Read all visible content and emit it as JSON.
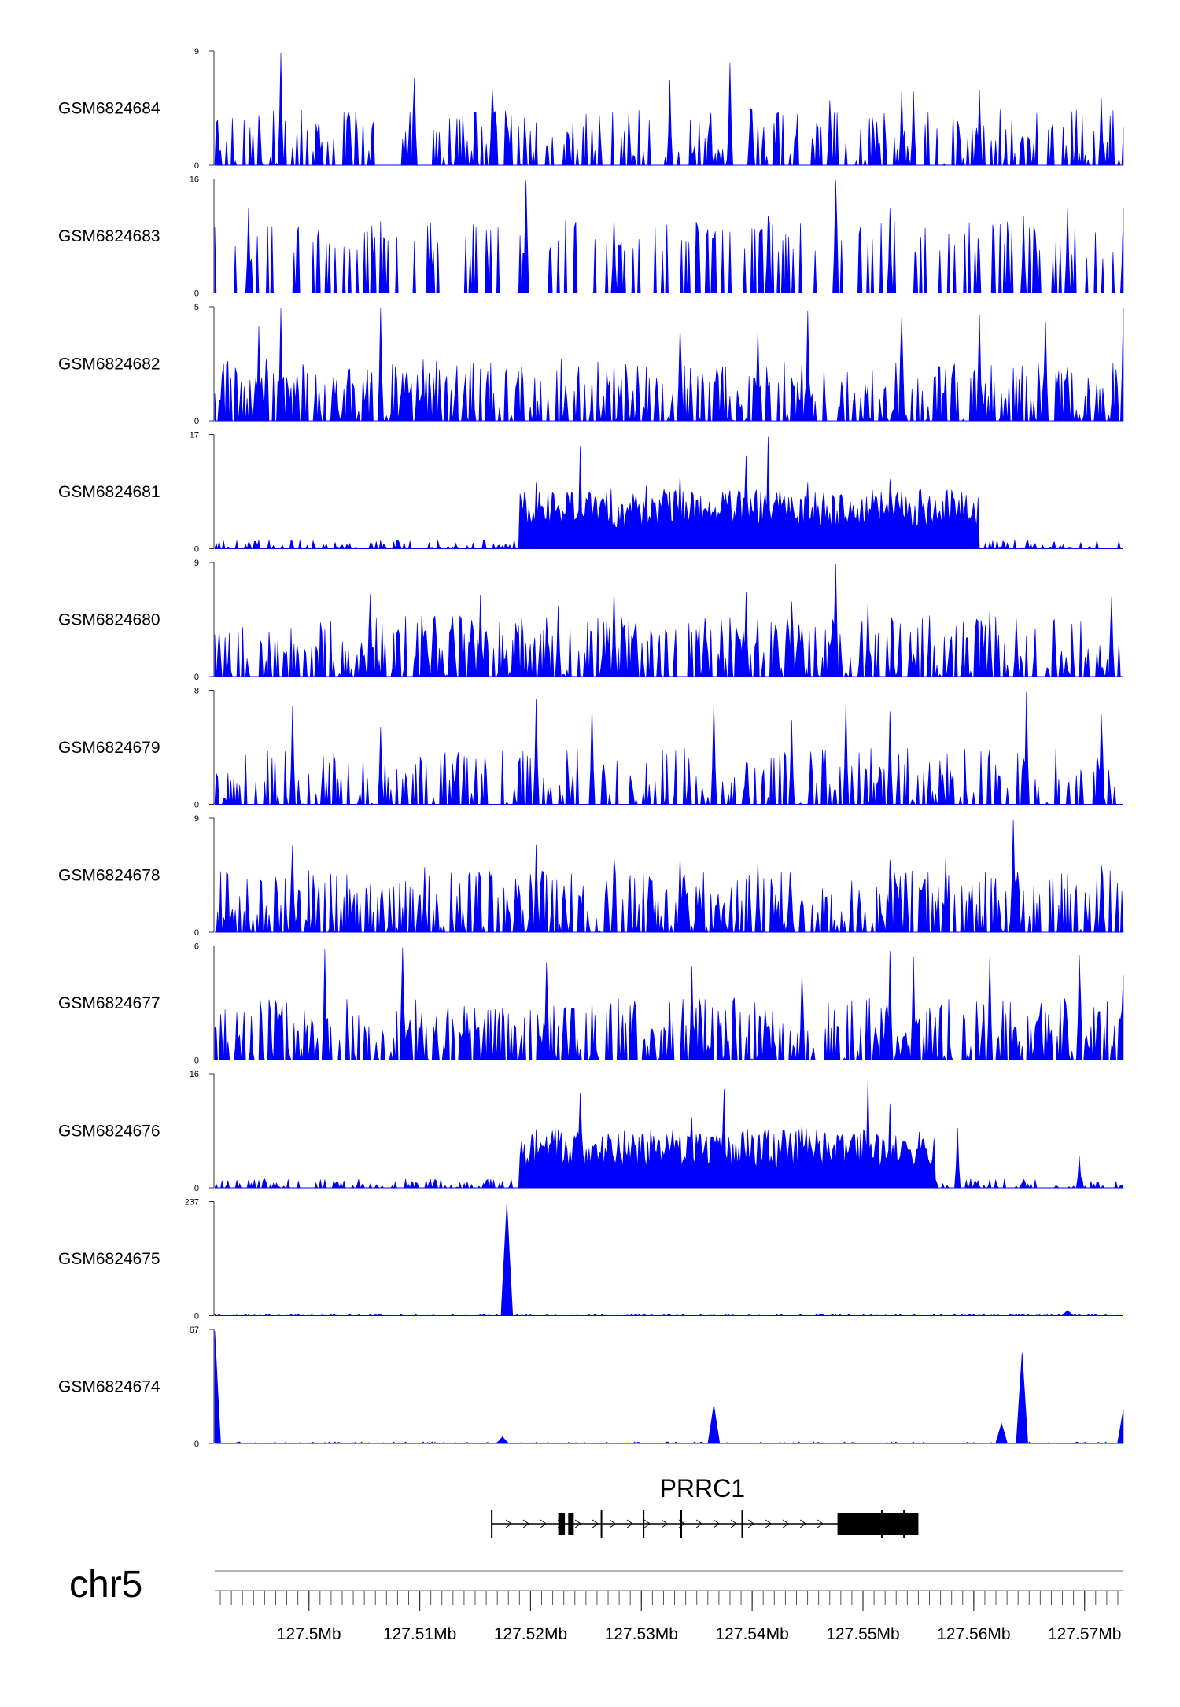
{
  "chart_data": {
    "type": "area",
    "region": {
      "chrom": "chr5",
      "start_mb": 127.4915,
      "end_mb": 127.5735
    },
    "fill_color": "#0000ff",
    "tracks": [
      {
        "name": "GSM6824684",
        "ymax": 9,
        "ymin": 0,
        "peaks": [
          [
            127.4975,
            9
          ],
          [
            127.538,
            8.2
          ],
          [
            127.5095,
            7
          ],
          [
            127.5325,
            6.8
          ],
          [
            127.5165,
            6.2
          ],
          [
            127.5605,
            6
          ],
          [
            127.5545,
            5.9
          ],
          [
            127.5535,
            5.9
          ],
          [
            127.5715,
            5.4
          ],
          [
            127.547,
            5.2
          ]
        ],
        "profile": "sparse"
      },
      {
        "name": "GSM6824683",
        "ymax": 16,
        "ymin": 0,
        "peaks": [
          [
            127.5196,
            16
          ],
          [
            127.5475,
            16
          ],
          [
            127.4945,
            12
          ],
          [
            127.5525,
            12
          ],
          [
            127.5685,
            12
          ],
          [
            127.5275,
            11
          ],
          [
            127.5415,
            11
          ],
          [
            127.5645,
            11
          ],
          [
            127.5735,
            12
          ],
          [
            127.511,
            10
          ]
        ],
        "profile": "sparse-gaps"
      },
      {
        "name": "GSM6824682",
        "ymax": 5,
        "ymin": 0,
        "peaks": [
          [
            127.4975,
            5
          ],
          [
            127.5065,
            5
          ],
          [
            127.5735,
            5
          ],
          [
            127.545,
            4.9
          ],
          [
            127.5605,
            4.7
          ],
          [
            127.5535,
            4.6
          ],
          [
            127.5665,
            4.4
          ],
          [
            127.4955,
            4.2
          ],
          [
            127.5335,
            4.2
          ],
          [
            127.5405,
            4.1
          ]
        ],
        "profile": "dense"
      },
      {
        "name": "GSM6824681",
        "ymax": 17,
        "ymin": 0,
        "peaks": [
          [
            127.5414,
            17
          ],
          [
            127.5245,
            15.5
          ],
          [
            127.5395,
            14
          ],
          [
            127.5525,
            10.5
          ],
          [
            127.545,
            10
          ],
          [
            127.5335,
            11.5
          ],
          [
            127.5205,
            10
          ],
          [
            127.5305,
            9.5
          ]
        ],
        "profile": "broad-domain",
        "domain_mb": [
          127.519,
          127.5605
        ]
      },
      {
        "name": "GSM6824680",
        "ymax": 9,
        "ymin": 0,
        "peaks": [
          [
            127.5475,
            9
          ],
          [
            127.5275,
            7
          ],
          [
            127.5395,
            6.8
          ],
          [
            127.5055,
            6.6
          ],
          [
            127.5155,
            6.5
          ],
          [
            127.5725,
            6.4
          ],
          [
            127.5435,
            6
          ],
          [
            127.5505,
            5.9
          ],
          [
            127.5225,
            5.6
          ],
          [
            127.5615,
            5.2
          ]
        ],
        "profile": "dense"
      },
      {
        "name": "GSM6824679",
        "ymax": 8,
        "ymin": 0,
        "peaks": [
          [
            127.5648,
            8
          ],
          [
            127.5205,
            7.5
          ],
          [
            127.5365,
            7.3
          ],
          [
            127.5485,
            7.2
          ],
          [
            127.4985,
            7
          ],
          [
            127.5255,
            7
          ],
          [
            127.5715,
            6.4
          ],
          [
            127.5525,
            6.6
          ],
          [
            127.5435,
            6
          ],
          [
            127.5065,
            5.5
          ]
        ],
        "profile": "sparse"
      },
      {
        "name": "GSM6824678",
        "ymax": 9,
        "ymin": 0,
        "peaks": [
          [
            127.5635,
            9
          ],
          [
            127.5205,
            7
          ],
          [
            127.4985,
            7
          ],
          [
            127.5275,
            6
          ],
          [
            127.5405,
            5.7
          ],
          [
            127.5525,
            5.8
          ],
          [
            127.5575,
            6
          ],
          [
            127.5105,
            5.2
          ],
          [
            127.5715,
            5.4
          ],
          [
            127.5335,
            6.2
          ]
        ],
        "profile": "dense"
      },
      {
        "name": "GSM6824677",
        "ymax": 6,
        "ymin": 0,
        "peaks": [
          [
            127.5085,
            6
          ],
          [
            127.5015,
            5.9
          ],
          [
            127.5525,
            5.8
          ],
          [
            127.5695,
            5.6
          ],
          [
            127.5615,
            5.5
          ],
          [
            127.5545,
            5.5
          ],
          [
            127.5215,
            5.2
          ],
          [
            127.5345,
            5
          ],
          [
            127.5445,
            4.6
          ],
          [
            127.5735,
            4.5
          ]
        ],
        "profile": "dense"
      },
      {
        "name": "GSM6824676",
        "ymax": 16,
        "ymin": 0,
        "profile": "broad-domain",
        "domain_mb": [
          127.519,
          127.5565
        ],
        "peaks": [
          [
            127.5505,
            15.7
          ],
          [
            127.5375,
            14
          ],
          [
            127.5245,
            13.5
          ],
          [
            127.5345,
            10
          ],
          [
            127.5525,
            12
          ],
          [
            127.5445,
            9
          ],
          [
            127.5585,
            8.5
          ],
          [
            127.5225,
            7
          ],
          [
            127.5695,
            4.5
          ]
        ]
      },
      {
        "name": "GSM6824675",
        "ymax": 237,
        "ymin": 0,
        "profile": "single-peak",
        "peaks": [
          [
            127.5178,
            237
          ],
          [
            127.5685,
            11
          ]
        ]
      },
      {
        "name": "GSM6824674",
        "ymax": 67,
        "ymin": 0,
        "profile": "sparse-sharp",
        "peaks": [
          [
            127.4915,
            67
          ],
          [
            127.5643,
            54
          ],
          [
            127.5365,
            23
          ],
          [
            127.5735,
            20
          ],
          [
            127.5625,
            12
          ],
          [
            127.5175,
            4
          ]
        ]
      }
    ],
    "gene": {
      "name": "PRRC1",
      "strand": "+",
      "start_mb": 127.5165,
      "end_mb": 127.555,
      "exons_mb": [
        [
          127.5165,
          127.5168
        ],
        [
          127.5225,
          127.5231
        ],
        [
          127.5234,
          127.5239
        ],
        [
          127.5264,
          127.5266
        ],
        [
          127.5302,
          127.5304
        ],
        [
          127.5336,
          127.5338
        ],
        [
          127.5391,
          127.5393
        ],
        [
          127.5477,
          127.555
        ]
      ],
      "inner_marks_mb": [
        127.5517,
        127.5537
      ]
    },
    "axis": {
      "chrom_label": "chr5",
      "tick_labels": [
        "127.5Mb",
        "127.51Mb",
        "127.52Mb",
        "127.53Mb",
        "127.54Mb",
        "127.55Mb",
        "127.56Mb",
        "127.57Mb"
      ],
      "tick_values_mb": [
        127.5,
        127.51,
        127.52,
        127.53,
        127.54,
        127.55,
        127.56,
        127.57
      ],
      "minor_tick_step_mb": 0.001
    }
  }
}
